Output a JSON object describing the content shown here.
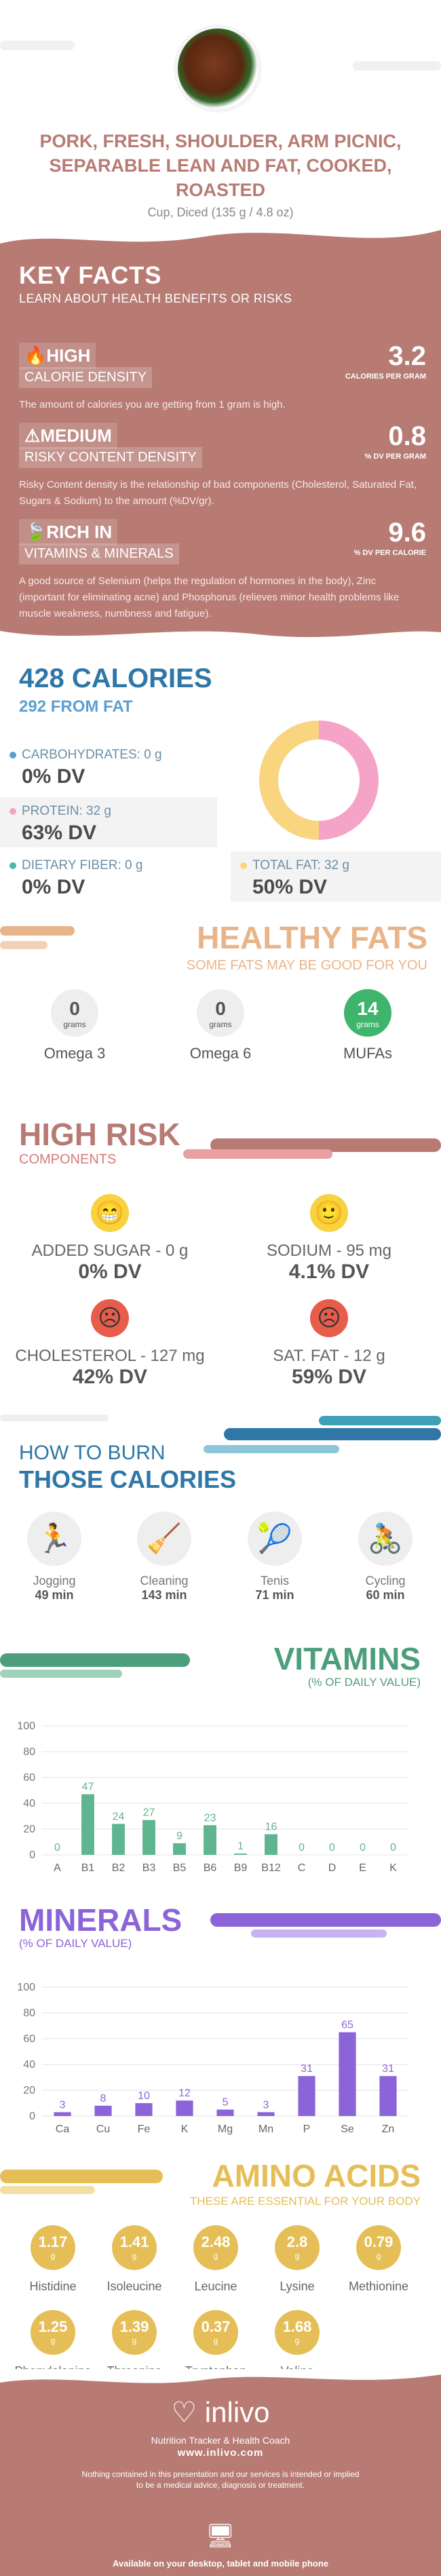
{
  "header": {
    "title": "PORK, FRESH, SHOULDER, ARM PICNIC, SEPARABLE LEAN AND FAT, COOKED, ROASTED",
    "serving": "Cup, Diced (135 g / 4.8 oz)"
  },
  "key_facts": {
    "heading": "KEY FACTS",
    "subheading": "LEARN ABOUT HEALTH BENEFITS OR RISKS",
    "facts": [
      {
        "level": "HIGH",
        "category": "CALORIE DENSITY",
        "value": "3.2",
        "unit": "CALORIES PER GRAM",
        "desc": "The amount of calories you are getting from 1 gram is high."
      },
      {
        "level": "MEDIUM",
        "category": "RISKY CONTENT DENSITY",
        "value": "0.8",
        "unit": "% DV PER GRAM",
        "desc": "Risky Content density is the relationship of bad components (Cholesterol, Saturated Fat, Sugars & Sodium) to the amount (%DV/gr)."
      },
      {
        "level": "RICH  IN",
        "category": "VITAMINS & MINERALS",
        "value": "9.6",
        "unit": "% DV PER CALORIE",
        "desc": "A good source of Selenium (helps the regulation of hormones in the body), Zinc (important for eliminating acne) and Phosphorus (relieves minor health problems like muscle weakness, numbness and fatigue)."
      }
    ]
  },
  "calories": {
    "heading": "428 CALORIES",
    "sub": "292 FROM FAT",
    "macros": [
      {
        "label": "CARBOHYDRATES: 0 g",
        "dv": "0% DV",
        "color": "#5b9fd1"
      },
      {
        "label": "PROTEIN: 32 g",
        "dv": "63% DV",
        "color": "#f5a3c7"
      },
      {
        "label": "DIETARY FIBER: 0 g",
        "dv": "0% DV",
        "color": "#4db6ac"
      },
      {
        "label": "TOTAL FAT: 32 g",
        "dv": "50% DV",
        "color": "#f8d57e"
      }
    ],
    "donut": {
      "protein_fraction": 0.5,
      "fat_fraction": 0.5,
      "protein_color": "#f5a3c7",
      "fat_color": "#f8d57e"
    }
  },
  "healthy_fats": {
    "heading": "HEALTHY FATS",
    "sub": "SOME FATS MAY BE GOOD FOR YOU",
    "items": [
      {
        "value": "0",
        "unit": "grams",
        "name": "Omega 3"
      },
      {
        "value": "0",
        "unit": "grams",
        "name": "Omega 6"
      },
      {
        "value": "14",
        "unit": "grams",
        "name": "MUFAs"
      }
    ]
  },
  "high_risk": {
    "heading": "HIGH RISK",
    "sub": "COMPONENTS",
    "items": [
      {
        "label": "ADDED SUGAR - 0 g",
        "dv": "0% DV",
        "face": "😁",
        "color": "#f8d23f"
      },
      {
        "label": "SODIUM - 95 mg",
        "dv": "4.1% DV",
        "face": "🙂",
        "color": "#f8d23f"
      },
      {
        "label": "CHOLESTEROL - 127 mg",
        "dv": "42% DV",
        "face": "☹",
        "color": "#e85c4a"
      },
      {
        "label": "SAT. FAT - 12 g",
        "dv": "59% DV",
        "face": "☹",
        "color": "#e85c4a"
      }
    ]
  },
  "burn": {
    "heading1": "HOW TO BURN",
    "heading2": "THOSE CALORIES",
    "activities": [
      {
        "name": "Jogging",
        "time": "49 min",
        "icon": "🏃"
      },
      {
        "name": "Cleaning",
        "time": "143 min",
        "icon": "🧹"
      },
      {
        "name": "Tenis",
        "time": "71 min",
        "icon": "🎾"
      },
      {
        "name": "Cycling",
        "time": "60 min",
        "icon": "🚴"
      }
    ]
  },
  "vitamins": {
    "heading": "VITAMINS",
    "sub": "(% OF DAILY VALUE)"
  },
  "minerals": {
    "heading": "MINERALS",
    "sub": "(% OF DAILY VALUE)"
  },
  "chart_data": [
    {
      "type": "bar",
      "categories": [
        "A",
        "B1",
        "B2",
        "B3",
        "B5",
        "B6",
        "B9",
        "B12",
        "C",
        "D",
        "E",
        "K"
      ],
      "values": [
        0,
        47,
        24,
        27,
        9,
        23,
        1,
        16,
        0,
        0,
        0,
        0
      ],
      "ylim": [
        0,
        100
      ],
      "yticks": [
        0,
        20,
        40,
        60,
        80,
        100
      ],
      "color": "#5fb58f",
      "grid": true
    },
    {
      "type": "bar",
      "categories": [
        "Ca",
        "Cu",
        "Fe",
        "K",
        "Mg",
        "Mn",
        "P",
        "Se",
        "Zn"
      ],
      "values": [
        3,
        8,
        10,
        12,
        5,
        3,
        31,
        65,
        31
      ],
      "ylim": [
        0,
        100
      ],
      "yticks": [
        0,
        20,
        40,
        60,
        80,
        100
      ],
      "color": "#8b64d9",
      "grid": true
    }
  ],
  "amino": {
    "heading": "AMINO ACIDS",
    "sub": "THESE ARE ESSENTIAL FOR YOUR BODY",
    "items": [
      {
        "value": "1.17",
        "unit": "g",
        "name": "Histidine"
      },
      {
        "value": "1.41",
        "unit": "g",
        "name": "Isoleucine"
      },
      {
        "value": "2.48",
        "unit": "g",
        "name": "Leucine"
      },
      {
        "value": "2.8",
        "unit": "g",
        "name": "Lysine"
      },
      {
        "value": "0.79",
        "unit": "g",
        "name": "Methionine"
      },
      {
        "value": "1.25",
        "unit": "g",
        "name": "Phenylalanine"
      },
      {
        "value": "1.39",
        "unit": "g",
        "name": "Threonine"
      },
      {
        "value": "0.37",
        "unit": "g",
        "name": "Tryptophan"
      },
      {
        "value": "1.68",
        "unit": "g",
        "name": "Valine"
      }
    ]
  },
  "footer": {
    "brand": "inlivo",
    "tagline": "Nutrition Tracker & Health Coach",
    "url": "www.inlivo.com",
    "disclaimer": "Nothing contained in this presentation and our services is intended or implied to be a medical advice, diagnosis or treatment.",
    "available": "Available on your desktop, tablet and mobile phone"
  }
}
